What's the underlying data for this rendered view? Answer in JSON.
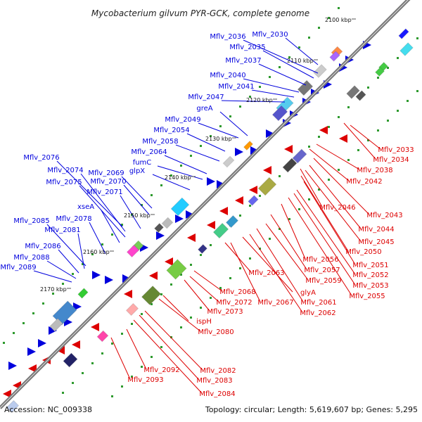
{
  "title": "Mycobacterium gilvum PYR-GCK, complete genome",
  "accession": "Accession: NC_009338",
  "summary": "Topology: circular; Length: 5,619,607 bp; Genes: 5,295",
  "ticks": [
    "2100 kbp",
    "2110 kbp",
    "2120 kbp",
    "2130 kbp",
    "2140 kbp",
    "2150 kbp",
    "2160 kbp",
    "2170 kbp"
  ],
  "colors": {
    "forward": "#0000dd",
    "reverse": "#dd0000",
    "backbone": "#777777",
    "gc": "#2e9a2e"
  },
  "forward_genes": [
    "Mflv_2030",
    "Mflv_2036",
    "Mflv_2035",
    "Mflv_2037",
    "Mflv_2040",
    "Mflv_2041",
    "Mflv_2047",
    "greA",
    "Mflv_2049",
    "Mflv_2054",
    "Mflv_2058",
    "Mflv_2064",
    "fumC",
    "glpX",
    "Mflv_2069",
    "Mflv_2070",
    "Mflv_2071",
    "Mflv_2076",
    "Mflv_2074",
    "Mflv_2075",
    "xseA",
    "Mflv_2078",
    "Mflv_2085",
    "Mflv_2081",
    "Mflv_2086",
    "Mflv_2088",
    "Mflv_2089"
  ],
  "reverse_genes": [
    "Mflv_2033",
    "Mflv_2034",
    "Mflv_2038",
    "Mflv_2042",
    "Mflv_2046",
    "Mflv_2043",
    "Mflv_2044",
    "Mflv_2045",
    "Mflv_2050",
    "Mflv_2051",
    "Mflv_2052",
    "Mflv_2053",
    "Mflv_2055",
    "Mflv_2056",
    "Mflv_2057",
    "Mflv_2059",
    "Mflv_2061",
    "Mflv_2062",
    "Mflv_2063",
    "glyA",
    "Mflv_2067",
    "Mflv_2068",
    "Mflv_2072",
    "Mflv_2073",
    "ispH",
    "Mflv_2080",
    "Mflv_2082",
    "Mflv_2083",
    "Mflv_2084",
    "Mflv_2092",
    "Mflv_2093"
  ]
}
